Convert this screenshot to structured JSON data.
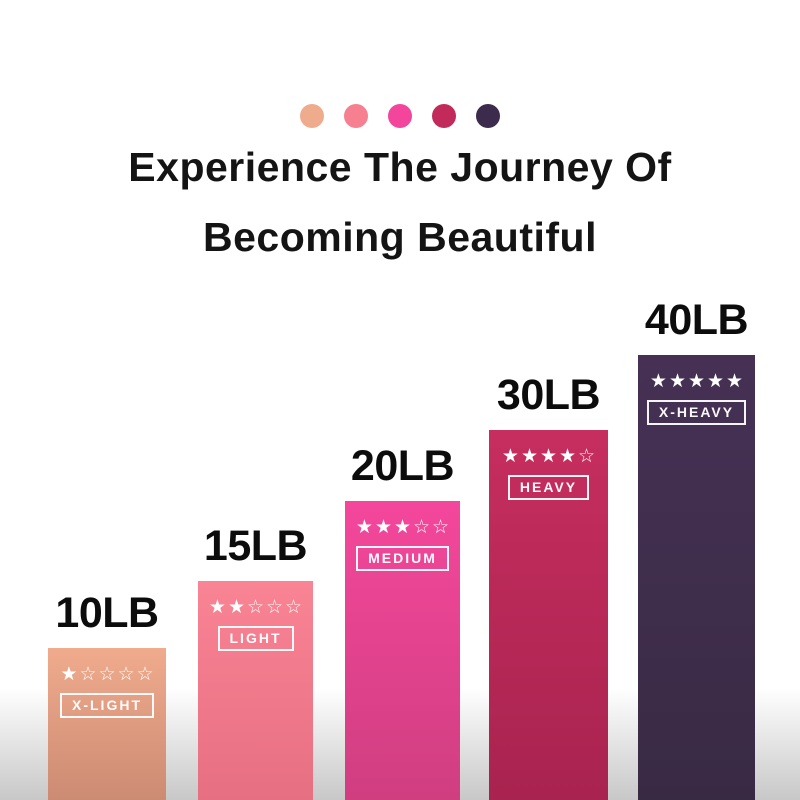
{
  "background": {
    "top": "#ffffff",
    "bottom": "#c8c8c8"
  },
  "palette_dots": [
    {
      "name": "x-light-dot",
      "color": "#efac8c"
    },
    {
      "name": "light-dot",
      "color": "#f67f90"
    },
    {
      "name": "medium-dot",
      "color": "#f2459b"
    },
    {
      "name": "heavy-dot",
      "color": "#c12a5a"
    },
    {
      "name": "x-heavy-dot",
      "color": "#3c2b4c"
    }
  ],
  "title": {
    "line1": "Experience The Journey Of",
    "line2": "Becoming Beautiful"
  },
  "chart_data": {
    "type": "bar",
    "title": "Experience The Journey Of Becoming Beautiful",
    "categories": [
      "10LB",
      "15LB",
      "20LB",
      "30LB",
      "40LB"
    ],
    "values": [
      10,
      15,
      20,
      30,
      40
    ],
    "unit": "LB",
    "legend_position": "none",
    "grid": false,
    "bars": [
      {
        "weight": "10LB",
        "value_lb": 10,
        "rating": 1,
        "rating_max": 5,
        "stars": "★☆☆☆☆",
        "level": "X-LIGHT",
        "color_top": "#f0ab8d",
        "color_bottom": "#cc8b73"
      },
      {
        "weight": "15LB",
        "value_lb": 15,
        "rating": 2,
        "rating_max": 5,
        "stars": "★★☆☆☆",
        "level": "LIGHT",
        "color_top": "#f98494",
        "color_bottom": "#e76f82"
      },
      {
        "weight": "20LB",
        "value_lb": 20,
        "rating": 3,
        "rating_max": 5,
        "stars": "★★★☆☆",
        "level": "MEDIUM",
        "color_top": "#f4479c",
        "color_bottom": "#d03e80"
      },
      {
        "weight": "30LB",
        "value_lb": 30,
        "rating": 4,
        "rating_max": 5,
        "stars": "★★★★☆",
        "level": "HEAVY",
        "color_top": "#c62e5f",
        "color_bottom": "#a92350"
      },
      {
        "weight": "40LB",
        "value_lb": 40,
        "rating": 5,
        "rating_max": 5,
        "stars": "★★★★★",
        "level": "X-HEAVY",
        "color_top": "#463155",
        "color_bottom": "#392a44"
      }
    ]
  }
}
